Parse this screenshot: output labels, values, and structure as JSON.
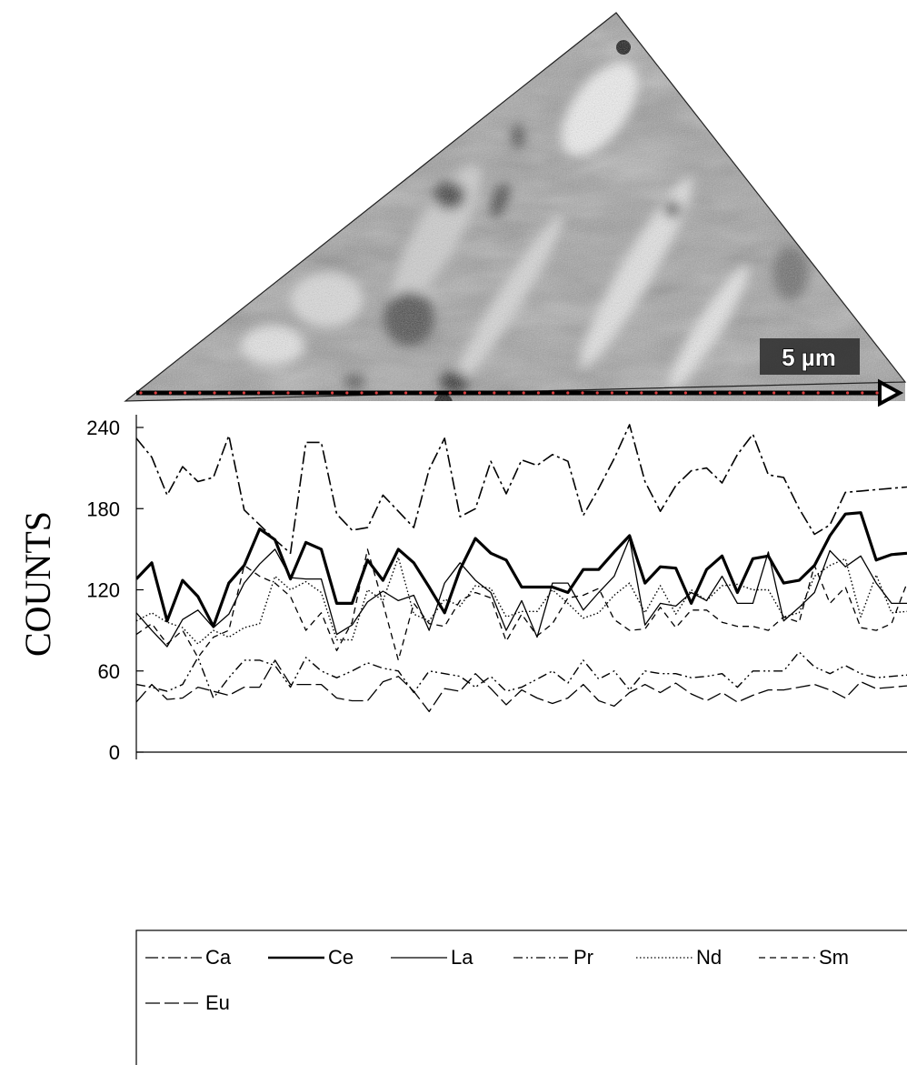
{
  "micrograph": {
    "scale_bar_label": "5 µm",
    "line_scan_color": "#000000",
    "marker_color": "#e04040"
  },
  "chart_data": {
    "type": "line",
    "ylabel": "COUNTS",
    "ylim": [
      0,
      240
    ],
    "yticks": [
      0,
      60,
      120,
      180,
      240
    ],
    "x": [
      0,
      1,
      2,
      3,
      4,
      5,
      6,
      7,
      8,
      9,
      10,
      11,
      12,
      13,
      14,
      15,
      16,
      17,
      18,
      19,
      20,
      21,
      22,
      23,
      24,
      25,
      26,
      27,
      28,
      29,
      30,
      31,
      32,
      33,
      34,
      35,
      36,
      37,
      38,
      39,
      40,
      41,
      42,
      43,
      44,
      45,
      46,
      47,
      48,
      49,
      50
    ],
    "grid": false,
    "legend_position": "bottom",
    "series": [
      {
        "name": "Ca",
        "style": "dashdot",
        "width": 1.6,
        "values": [
          232,
          218,
          190,
          211,
          200,
          203,
          234,
          179,
          168,
          157,
          147,
          229,
          229,
          176,
          164,
          166,
          190,
          178,
          166,
          209,
          232,
          174,
          180,
          215,
          191,
          216,
          212,
          220,
          215,
          175,
          195,
          217,
          242,
          200,
          178,
          197,
          208,
          210,
          199,
          220,
          235,
          205,
          203,
          180,
          161,
          168,
          192,
          193,
          194,
          195,
          196
        ]
      },
      {
        "name": "Ce",
        "style": "solid",
        "width": 3.2,
        "values": [
          128,
          140,
          97,
          127,
          115,
          93,
          125,
          138,
          165,
          157,
          128,
          155,
          150,
          110,
          110,
          142,
          127,
          150,
          140,
          122,
          103,
          135,
          158,
          147,
          142,
          122,
          122,
          122,
          118,
          135,
          135,
          148,
          160,
          125,
          137,
          136,
          110,
          135,
          145,
          118,
          143,
          145,
          125,
          127,
          138,
          160,
          176,
          177,
          142,
          146,
          147
        ]
      },
      {
        "name": "La",
        "style": "solid",
        "width": 1.3,
        "values": [
          103,
          90,
          78,
          98,
          105,
          92,
          102,
          125,
          139,
          150,
          129,
          128,
          128,
          87,
          94,
          111,
          119,
          112,
          116,
          90,
          125,
          140,
          127,
          118,
          90,
          112,
          85,
          125,
          125,
          105,
          118,
          130,
          158,
          94,
          110,
          108,
          118,
          112,
          130,
          110,
          110,
          148,
          97,
          107,
          118,
          149,
          137,
          145,
          125,
          110,
          110
        ]
      },
      {
        "name": "Pr",
        "style": "dashdotdot",
        "width": 1.4,
        "values": [
          50,
          48,
          45,
          50,
          70,
          40,
          55,
          68,
          68,
          64,
          48,
          70,
          60,
          55,
          60,
          66,
          62,
          60,
          44,
          60,
          58,
          56,
          48,
          56,
          45,
          48,
          54,
          60,
          51,
          68,
          54,
          60,
          46,
          60,
          58,
          58,
          55,
          56,
          58,
          48,
          60,
          60,
          60,
          74,
          63,
          58,
          64,
          58,
          55,
          56,
          57
        ]
      },
      {
        "name": "Nd",
        "style": "dotted",
        "width": 1.4,
        "values": [
          97,
          103,
          96,
          92,
          80,
          90,
          85,
          92,
          95,
          130,
          120,
          126,
          118,
          83,
          83,
          120,
          112,
          144,
          102,
          97,
          113,
          108,
          123,
          121,
          100,
          104,
          104,
          120,
          110,
          99,
          103,
          116,
          125,
          103,
          123,
          102,
          120,
          112,
          123,
          124,
          120,
          120,
          100,
          103,
          130,
          138,
          143,
          100,
          131,
          103,
          104
        ]
      },
      {
        "name": "Sm",
        "style": "dashed",
        "width": 1.3,
        "values": [
          87,
          95,
          80,
          90,
          70,
          85,
          90,
          138,
          130,
          125,
          115,
          90,
          103,
          75,
          96,
          150,
          110,
          68,
          110,
          95,
          93,
          112,
          118,
          114,
          82,
          102,
          86,
          95,
          114,
          116,
          121,
          98,
          90,
          91,
          107,
          92,
          105,
          105,
          96,
          93,
          93,
          90,
          100,
          96,
          138,
          110,
          122,
          92,
          90,
          95,
          125
        ]
      },
      {
        "name": "Eu",
        "style": "longdash",
        "width": 1.3,
        "values": [
          37,
          50,
          39,
          40,
          48,
          45,
          42,
          48,
          48,
          68,
          50,
          50,
          50,
          40,
          38,
          38,
          52,
          56,
          45,
          30,
          47,
          45,
          58,
          47,
          35,
          46,
          40,
          36,
          40,
          50,
          38,
          34,
          44,
          50,
          44,
          51,
          43,
          38,
          44,
          37,
          42,
          46,
          46,
          48,
          50,
          46,
          40,
          52,
          47,
          48,
          49
        ]
      }
    ]
  }
}
